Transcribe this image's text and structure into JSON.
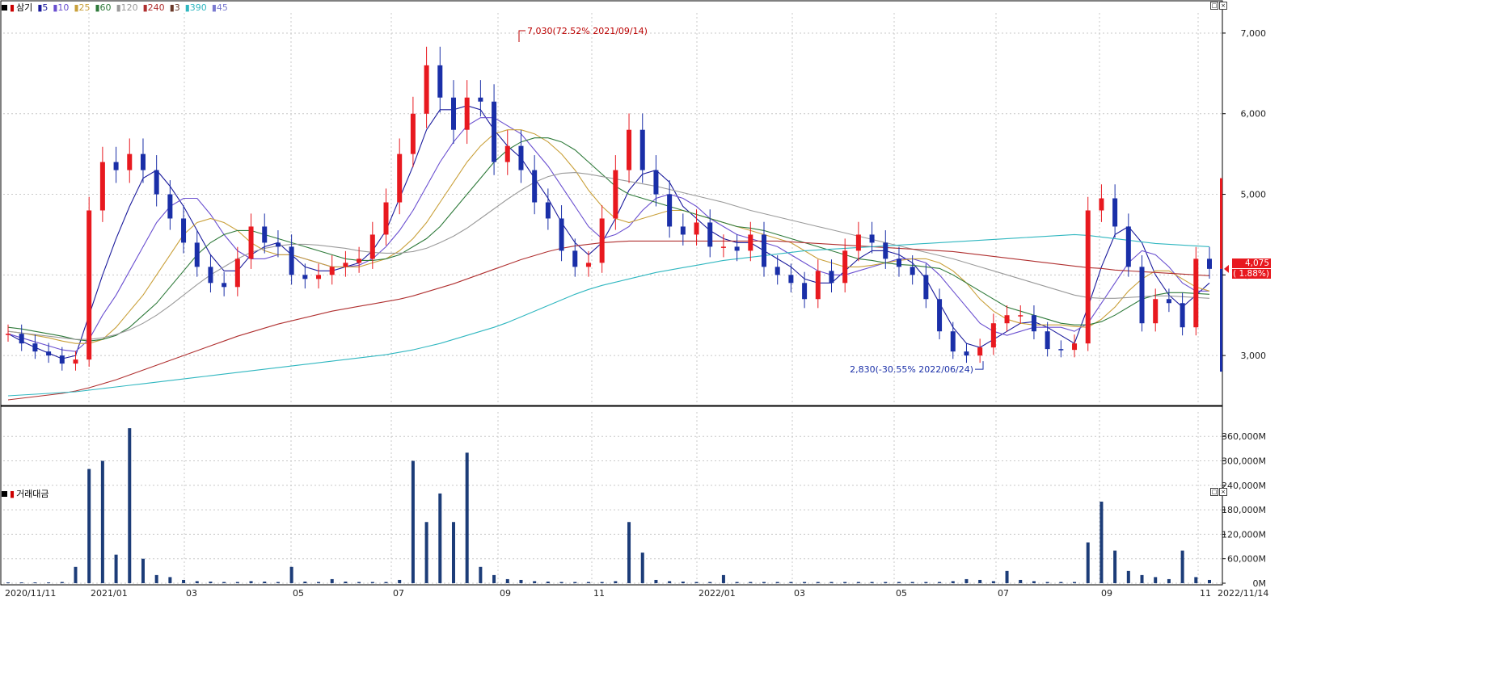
{
  "legend": {
    "symbol": "삼기",
    "items": [
      {
        "label": "5",
        "color": "#1a1a9c"
      },
      {
        "label": "10",
        "color": "#6a4fd0"
      },
      {
        "label": "25",
        "color": "#c9a03a"
      },
      {
        "label": "60",
        "color": "#2e7a3a"
      },
      {
        "label": "120",
        "color": "#9a9a9a"
      },
      {
        "label": "240",
        "color": "#b03030"
      },
      {
        "label": "3",
        "color": "#6b3a2a"
      },
      {
        "label": "390",
        "color": "#30b7c0"
      },
      {
        "label": "45",
        "color": "#7a7ad0"
      }
    ]
  },
  "volume_label": "거래대금",
  "current_price": {
    "value": "4,075",
    "change": "( 1.88%)"
  },
  "chart_data": {
    "type": "candlestick",
    "start_date": "2020/11/11",
    "end_date": "2022/11/14",
    "price_axis": {
      "ticks": [
        "3,000",
        "4,000",
        "5,000",
        "6,000",
        "7,000"
      ],
      "ylim": [
        2400,
        7250
      ]
    },
    "volume_axis": {
      "ticks": [
        "0M",
        "60,000M",
        "120,000M",
        "180,000M",
        "240,000M",
        "300,000M",
        "360,000M"
      ],
      "ylim": [
        0,
        400000
      ]
    },
    "x_tick_labels": [
      "2020/11/11",
      "2021/01",
      "03",
      "05",
      "07",
      "09",
      "11",
      "2022/01",
      "03",
      "05",
      "07",
      "09",
      "11",
      "2022/11/14"
    ],
    "annotations": [
      {
        "text": "7,030(72.52% 2021/09/14)",
        "price": 7030
      },
      {
        "text": "2,830(-30.55% 2022/06/24)",
        "price": 2830
      }
    ],
    "close_series": [
      3270,
      3150,
      3050,
      3000,
      2900,
      2950,
      4800,
      5400,
      5300,
      5500,
      5300,
      5000,
      4700,
      4400,
      4100,
      3900,
      3850,
      4200,
      4600,
      4400,
      4350,
      4000,
      3950,
      4000,
      4100,
      4150,
      4200,
      4500,
      4900,
      5500,
      6000,
      6600,
      6200,
      5800,
      6200,
      6150,
      5400,
      5600,
      5300,
      4900,
      4700,
      4300,
      4100,
      4150,
      4700,
      5300,
      5800,
      5300,
      5000,
      4600,
      4500,
      4650,
      4350,
      4350,
      4300,
      4500,
      4100,
      4000,
      3900,
      3700,
      4050,
      3900,
      4300,
      4500,
      4400,
      4200,
      4100,
      4000,
      3700,
      3300,
      3050,
      3000,
      3100,
      3400,
      3500,
      3500,
      3300,
      3080,
      3070,
      3150,
      4800,
      4950,
      4600,
      4100,
      3400,
      3700,
      3650,
      3350,
      4200,
      4075
    ],
    "ma": {
      "5": [
        3270,
        3180,
        3100,
        3030,
        2960,
        3000,
        3500,
        4000,
        4450,
        4850,
        5200,
        5300,
        5100,
        4850,
        4550,
        4250,
        4050,
        4050,
        4250,
        4350,
        4400,
        4250,
        4100,
        4050,
        4050,
        4100,
        4150,
        4300,
        4550,
        4950,
        5350,
        5800,
        6050,
        6050,
        6100,
        6050,
        5800,
        5600,
        5450,
        5200,
        4950,
        4650,
        4400,
        4250,
        4400,
        4700,
        5050,
        5250,
        5300,
        5150,
        4850,
        4700,
        4550,
        4450,
        4400,
        4400,
        4300,
        4200,
        4100,
        3950,
        3900,
        3900,
        4050,
        4200,
        4300,
        4300,
        4250,
        4150,
        3950,
        3650,
        3350,
        3150,
        3100,
        3200,
        3300,
        3400,
        3420,
        3350,
        3250,
        3150,
        3600,
        4100,
        4500,
        4600,
        4400,
        4000,
        3750,
        3600,
        3750,
        3900
      ],
      "10": [
        3270,
        3220,
        3170,
        3120,
        3070,
        3050,
        3200,
        3500,
        3750,
        4050,
        4350,
        4650,
        4850,
        4950,
        4950,
        4750,
        4500,
        4300,
        4200,
        4200,
        4250,
        4250,
        4200,
        4150,
        4100,
        4100,
        4120,
        4200,
        4350,
        4550,
        4800,
        5100,
        5400,
        5650,
        5850,
        5950,
        5950,
        5850,
        5750,
        5550,
        5350,
        5100,
        4850,
        4600,
        4450,
        4500,
        4600,
        4800,
        4950,
        5000,
        4950,
        4850,
        4700,
        4600,
        4500,
        4450,
        4400,
        4350,
        4250,
        4150,
        4050,
        4000,
        4000,
        4050,
        4100,
        4150,
        4200,
        4200,
        4150,
        4000,
        3800,
        3600,
        3400,
        3300,
        3250,
        3300,
        3350,
        3350,
        3350,
        3300,
        3400,
        3650,
        3900,
        4150,
        4300,
        4250,
        4100,
        3900,
        3800,
        3800
      ],
      "25": [
        3300,
        3280,
        3250,
        3220,
        3180,
        3150,
        3150,
        3200,
        3350,
        3550,
        3750,
        4000,
        4250,
        4500,
        4650,
        4700,
        4650,
        4550,
        4400,
        4300,
        4250,
        4250,
        4200,
        4150,
        4100,
        4100,
        4100,
        4150,
        4200,
        4300,
        4450,
        4650,
        4900,
        5150,
        5400,
        5600,
        5750,
        5800,
        5800,
        5750,
        5650,
        5500,
        5300,
        5050,
        4850,
        4700,
        4650,
        4700,
        4750,
        4800,
        4800,
        4750,
        4700,
        4650,
        4600,
        4550,
        4500,
        4450,
        4400,
        4300,
        4200,
        4150,
        4100,
        4100,
        4120,
        4150,
        4180,
        4200,
        4200,
        4150,
        4050,
        3900,
        3700,
        3550,
        3450,
        3400,
        3380,
        3380,
        3380,
        3360,
        3350,
        3450,
        3600,
        3800,
        3950,
        4050,
        4050,
        3950,
        3850,
        3800
      ],
      "60": [
        3350,
        3330,
        3300,
        3270,
        3240,
        3200,
        3180,
        3200,
        3250,
        3350,
        3500,
        3650,
        3850,
        4050,
        4250,
        4400,
        4500,
        4550,
        4550,
        4500,
        4450,
        4400,
        4350,
        4300,
        4250,
        4200,
        4180,
        4180,
        4200,
        4250,
        4350,
        4450,
        4600,
        4800,
        5000,
        5200,
        5400,
        5550,
        5650,
        5700,
        5700,
        5650,
        5550,
        5400,
        5250,
        5100,
        5000,
        4950,
        4900,
        4850,
        4800,
        4750,
        4700,
        4650,
        4600,
        4580,
        4550,
        4500,
        4450,
        4400,
        4350,
        4300,
        4250,
        4200,
        4180,
        4150,
        4130,
        4120,
        4100,
        4080,
        4000,
        3900,
        3800,
        3700,
        3600,
        3550,
        3500,
        3450,
        3400,
        3380,
        3380,
        3420,
        3500,
        3600,
        3700,
        3750,
        3780,
        3780,
        3770,
        3760
      ],
      "120": [
        3300,
        3280,
        3260,
        3240,
        3220,
        3200,
        3200,
        3220,
        3260,
        3320,
        3400,
        3500,
        3620,
        3750,
        3880,
        4000,
        4100,
        4200,
        4280,
        4330,
        4360,
        4380,
        4380,
        4370,
        4350,
        4330,
        4300,
        4280,
        4270,
        4270,
        4290,
        4330,
        4400,
        4480,
        4580,
        4700,
        4820,
        4940,
        5050,
        5150,
        5220,
        5260,
        5270,
        5250,
        5220,
        5190,
        5160,
        5130,
        5100,
        5060,
        5020,
        4980,
        4940,
        4900,
        4850,
        4800,
        4760,
        4720,
        4680,
        4640,
        4600,
        4560,
        4520,
        4480,
        4440,
        4400,
        4360,
        4320,
        4280,
        4240,
        4200,
        4150,
        4100,
        4050,
        4000,
        3950,
        3900,
        3850,
        3800,
        3750,
        3720,
        3710,
        3710,
        3720,
        3730,
        3740,
        3740,
        3730,
        3720,
        3710
      ],
      "240": [
        2450,
        2470,
        2490,
        2510,
        2530,
        2560,
        2600,
        2650,
        2700,
        2760,
        2820,
        2880,
        2940,
        3000,
        3060,
        3120,
        3180,
        3240,
        3290,
        3340,
        3390,
        3430,
        3470,
        3510,
        3550,
        3580,
        3610,
        3640,
        3670,
        3700,
        3740,
        3790,
        3840,
        3890,
        3950,
        4010,
        4070,
        4130,
        4190,
        4240,
        4290,
        4330,
        4360,
        4380,
        4400,
        4410,
        4420,
        4420,
        4420,
        4420,
        4420,
        4420,
        4420,
        4420,
        4420,
        4420,
        4420,
        4420,
        4410,
        4400,
        4390,
        4380,
        4370,
        4360,
        4350,
        4340,
        4330,
        4320,
        4310,
        4300,
        4290,
        4270,
        4250,
        4230,
        4210,
        4190,
        4170,
        4150,
        4130,
        4110,
        4090,
        4080,
        4060,
        4050,
        4040,
        4030,
        4020,
        4010,
        4000,
        3990
      ],
      "390": [
        2500,
        2510,
        2520,
        2530,
        2540,
        2550,
        2570,
        2590,
        2610,
        2630,
        2650,
        2670,
        2690,
        2710,
        2730,
        2750,
        2770,
        2790,
        2810,
        2830,
        2850,
        2870,
        2890,
        2910,
        2930,
        2950,
        2970,
        2990,
        3010,
        3040,
        3070,
        3110,
        3150,
        3200,
        3250,
        3300,
        3350,
        3410,
        3480,
        3550,
        3620,
        3690,
        3760,
        3820,
        3870,
        3910,
        3950,
        3990,
        4030,
        4060,
        4090,
        4120,
        4150,
        4180,
        4200,
        4220,
        4240,
        4260,
        4280,
        4300,
        4310,
        4320,
        4330,
        4340,
        4350,
        4360,
        4370,
        4380,
        4390,
        4400,
        4410,
        4420,
        4430,
        4440,
        4450,
        4460,
        4470,
        4480,
        4490,
        4500,
        4490,
        4470,
        4450,
        4430,
        4410,
        4390,
        4380,
        4370,
        4360,
        4350
      ]
    },
    "volume": [
      2000,
      2000,
      2000,
      2000,
      3000,
      40000,
      280000,
      300000,
      70000,
      380000,
      60000,
      20000,
      15000,
      8000,
      5000,
      4000,
      3000,
      3000,
      5000,
      4000,
      3000,
      40000,
      4000,
      3000,
      10000,
      4000,
      3000,
      3000,
      3000,
      8000,
      300000,
      150000,
      220000,
      150000,
      320000,
      40000,
      20000,
      10000,
      8000,
      5000,
      4000,
      3000,
      3000,
      3000,
      3000,
      5000,
      150000,
      75000,
      8000,
      5000,
      4000,
      3000,
      3000,
      20000,
      3000,
      3000,
      3000,
      3000,
      3000,
      3000,
      3000,
      3000,
      3000,
      3000,
      3000,
      3000,
      3000,
      3000,
      3000,
      3000,
      5000,
      10000,
      8000,
      5000,
      30000,
      8000,
      5000,
      3000,
      3000,
      3000,
      100000,
      200000,
      80000,
      30000,
      20000,
      15000,
      10000,
      80000,
      15000,
      8000
    ]
  }
}
